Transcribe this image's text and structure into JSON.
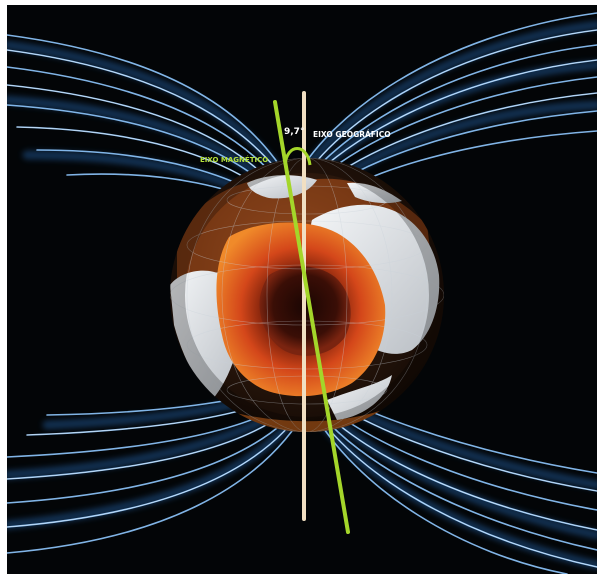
{
  "labels": {
    "magnetic_axis": "EIXO MAGNÉTICO",
    "geographic_axis": "EIXO GEOGRÁFICO",
    "angle": "9,7°"
  },
  "colors": {
    "background": "#030507",
    "field_lines": "#8fc8ff",
    "field_glow": "#2f7fd8",
    "magnetic_axis": "#a4d62a",
    "geographic_axis": "#f1dfc2",
    "magnetic_label": "#b4e03a",
    "geographic_label": "#ffffff",
    "angle_label": "#ffffff",
    "core_orange": "#e2541a",
    "continent": "#e6e9ec"
  },
  "tilt_angle_degrees": 9.7
}
